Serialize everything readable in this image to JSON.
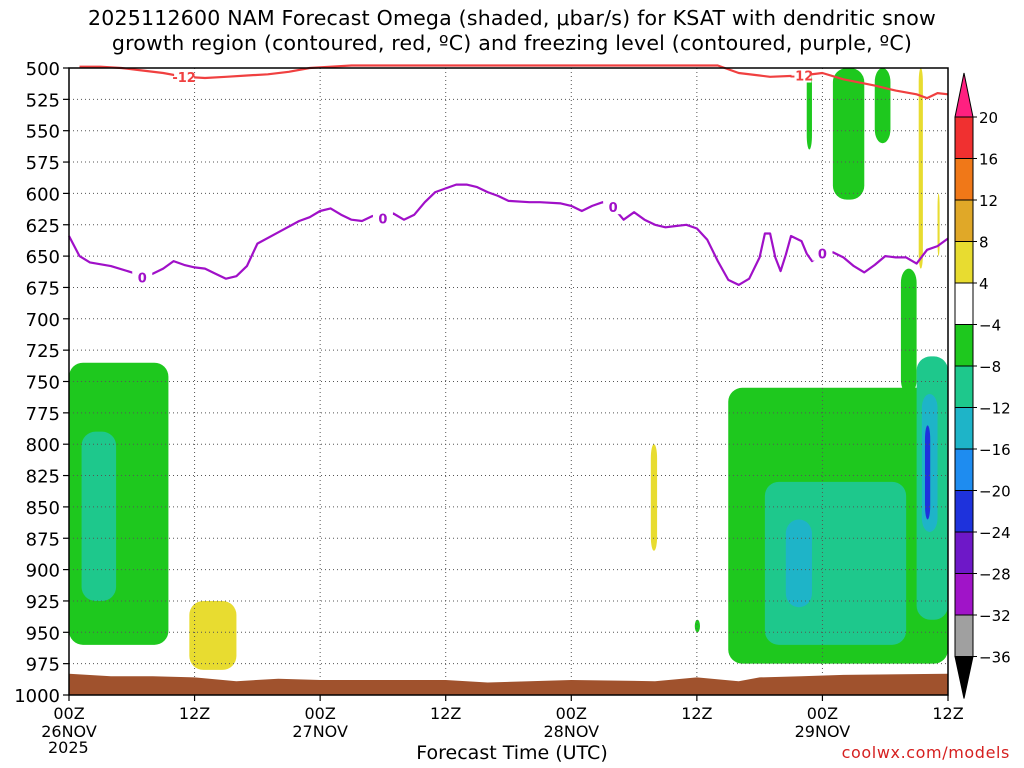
{
  "title": {
    "line1": "2025112600 NAM Forecast Omega (shaded, μbar/s) for KSAT with dendritic snow",
    "line2": "growth region (contoured, red, ºC) and freezing level (contoured, purple, ºC)"
  },
  "credit": "coolwx.com/models",
  "chart_data": {
    "type": "heatmap",
    "xlabel": "Forecast Time (UTC)",
    "year_label": "2025",
    "x_range_hours": [
      0,
      84
    ],
    "y_range_mb": [
      500,
      1000
    ],
    "y_ticks": [
      "500",
      "525",
      "550",
      "575",
      "600",
      "625",
      "650",
      "675",
      "700",
      "725",
      "750",
      "775",
      "800",
      "825",
      "850",
      "875",
      "900",
      "925",
      "950",
      "975",
      "1000"
    ],
    "x_ticks": [
      {
        "hour": 0,
        "label": "00Z",
        "date": "26NOV"
      },
      {
        "hour": 12,
        "label": "12Z",
        "date": ""
      },
      {
        "hour": 24,
        "label": "00Z",
        "date": "27NOV"
      },
      {
        "hour": 36,
        "label": "12Z",
        "date": ""
      },
      {
        "hour": 48,
        "label": "00Z",
        "date": "28NOV"
      },
      {
        "hour": 60,
        "label": "12Z",
        "date": ""
      },
      {
        "hour": 72,
        "label": "00Z",
        "date": "29NOV"
      },
      {
        "hour": 84,
        "label": "12Z",
        "date": ""
      }
    ],
    "colorbar": {
      "labels": [
        "20",
        "16",
        "12",
        "8",
        "4",
        "−4",
        "−8",
        "−12",
        "−16",
        "−20",
        "−24",
        "−28",
        "−32",
        "−36"
      ],
      "colors": [
        "#ff2080",
        "#f03030",
        "#f07818",
        "#e0a828",
        "#e8dc30",
        "#ffffff",
        "#1ec81e",
        "#1ec88c",
        "#1eb4c8",
        "#1e8cf0",
        "#1e32dc",
        "#6e18c8",
        "#a014c8",
        "#a0a0a0",
        "#000000"
      ]
    },
    "dgz_contour": {
      "label": "-12",
      "color": "#f04040",
      "points": [
        [
          1,
          499
        ],
        [
          3,
          499
        ],
        [
          5,
          500
        ],
        [
          7,
          502
        ],
        [
          9,
          504
        ],
        [
          11,
          507
        ],
        [
          13,
          508
        ],
        [
          15,
          507
        ],
        [
          17,
          506
        ],
        [
          19,
          505
        ],
        [
          21,
          503
        ],
        [
          23,
          500
        ],
        [
          25,
          499
        ],
        [
          27,
          498
        ],
        [
          30,
          498
        ],
        [
          62,
          498
        ],
        [
          64,
          504
        ],
        [
          66,
          506
        ],
        [
          67,
          507
        ],
        [
          70,
          506
        ],
        [
          72,
          504
        ],
        [
          74,
          509
        ],
        [
          77,
          514
        ],
        [
          79,
          518
        ],
        [
          81,
          521
        ],
        [
          82,
          524
        ],
        [
          83,
          520
        ],
        [
          84,
          521
        ]
      ]
    },
    "freezing_contour": {
      "label": "0",
      "color": "#a010c8",
      "points": [
        [
          0,
          634
        ],
        [
          1,
          650
        ],
        [
          2,
          655
        ],
        [
          4,
          658
        ],
        [
          6,
          663
        ],
        [
          7,
          667
        ],
        [
          8,
          664
        ],
        [
          9,
          660
        ],
        [
          10,
          654
        ],
        [
          11,
          657
        ],
        [
          12,
          659
        ],
        [
          13,
          660
        ],
        [
          14,
          664
        ],
        [
          15,
          668
        ],
        [
          16,
          666
        ],
        [
          17,
          658
        ],
        [
          18,
          640
        ],
        [
          20,
          631
        ],
        [
          22,
          622
        ],
        [
          23,
          619
        ],
        [
          24,
          614
        ],
        [
          25,
          612
        ],
        [
          26,
          617
        ],
        [
          27,
          621
        ],
        [
          28,
          622
        ],
        [
          29,
          618
        ],
        [
          30,
          620
        ],
        [
          31,
          616
        ],
        [
          32,
          621
        ],
        [
          33,
          617
        ],
        [
          34,
          607
        ],
        [
          35,
          599
        ],
        [
          36,
          596
        ],
        [
          37,
          593
        ],
        [
          38,
          593
        ],
        [
          39,
          595
        ],
        [
          40,
          599
        ],
        [
          41,
          602
        ],
        [
          42,
          606
        ],
        [
          44,
          607
        ],
        [
          45,
          607
        ],
        [
          47,
          608
        ],
        [
          48,
          610
        ],
        [
          49,
          614
        ],
        [
          50,
          610
        ],
        [
          51,
          607
        ],
        [
          52,
          611
        ],
        [
          53,
          621
        ],
        [
          54,
          615
        ],
        [
          55,
          621
        ],
        [
          56,
          625
        ],
        [
          57,
          627
        ],
        [
          58,
          626
        ],
        [
          59,
          625
        ],
        [
          60,
          628
        ],
        [
          61,
          637
        ],
        [
          62,
          654
        ],
        [
          63,
          669
        ],
        [
          64,
          673
        ],
        [
          65,
          668
        ],
        [
          66,
          651
        ],
        [
          66.5,
          632
        ],
        [
          67,
          632
        ],
        [
          67.5,
          651
        ],
        [
          68,
          662
        ],
        [
          68.5,
          649
        ],
        [
          69,
          634
        ],
        [
          70,
          638
        ],
        [
          70.5,
          648
        ],
        [
          71,
          654
        ],
        [
          72,
          648
        ],
        [
          73,
          647
        ],
        [
          74,
          651
        ],
        [
          75,
          658
        ],
        [
          76,
          663
        ],
        [
          77,
          657
        ],
        [
          78,
          650
        ],
        [
          79,
          651
        ],
        [
          80,
          651
        ],
        [
          81,
          656
        ],
        [
          82,
          645
        ],
        [
          83,
          642
        ],
        [
          84,
          636
        ]
      ]
    },
    "shaded_regions": [
      {
        "value": -6,
        "hour_range": [
          0,
          9.5
        ],
        "pressure_range": [
          735,
          960
        ]
      },
      {
        "value": -10,
        "hour_range": [
          1.2,
          4.5
        ],
        "pressure_range": [
          790,
          925
        ]
      },
      {
        "value": 6,
        "hour_range": [
          11.5,
          16
        ],
        "pressure_range": [
          925,
          980
        ]
      },
      {
        "value": 6,
        "hour_range": [
          55.6,
          56.2
        ],
        "pressure_range": [
          800,
          885
        ]
      },
      {
        "value": -6,
        "hour_range": [
          59.8,
          60.3
        ],
        "pressure_range": [
          940,
          950
        ]
      },
      {
        "value": -6,
        "hour_range": [
          63,
          84
        ],
        "pressure_range": [
          755,
          975
        ]
      },
      {
        "value": -10,
        "hour_range": [
          66.5,
          80
        ],
        "pressure_range": [
          830,
          960
        ]
      },
      {
        "value": -14,
        "hour_range": [
          68.5,
          71
        ],
        "pressure_range": [
          860,
          930
        ]
      },
      {
        "value": -6,
        "hour_range": [
          70.5,
          71
        ],
        "pressure_range": [
          500,
          565
        ]
      },
      {
        "value": -6,
        "hour_range": [
          73,
          76
        ],
        "pressure_range": [
          500,
          605
        ]
      },
      {
        "value": -6,
        "hour_range": [
          77,
          78.5
        ],
        "pressure_range": [
          500,
          560
        ]
      },
      {
        "value": -6,
        "hour_range": [
          79.5,
          81
        ],
        "pressure_range": [
          660,
          760
        ]
      },
      {
        "value": -10,
        "hour_range": [
          81,
          84
        ],
        "pressure_range": [
          730,
          940
        ]
      },
      {
        "value": -14,
        "hour_range": [
          81.5,
          83
        ],
        "pressure_range": [
          760,
          870
        ]
      },
      {
        "value": -20,
        "hour_range": [
          81.8,
          82.3
        ],
        "pressure_range": [
          785,
          860
        ]
      },
      {
        "value": 6,
        "hour_range": [
          81.2,
          81.6
        ],
        "pressure_range": [
          500,
          660
        ]
      },
      {
        "value": 6,
        "hour_range": [
          83,
          83.2
        ],
        "pressure_range": [
          600,
          650
        ]
      }
    ]
  }
}
